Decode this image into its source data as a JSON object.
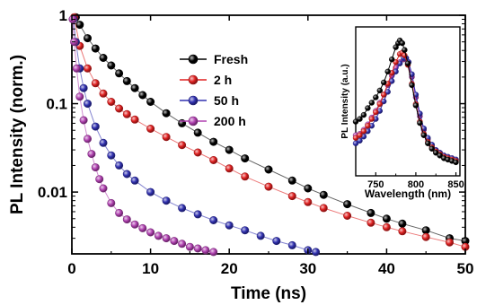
{
  "chart_data": [
    {
      "type": "scatter",
      "xlabel": "Time (ns)",
      "ylabel": "PL Intensity (norm.)",
      "xlim": [
        0,
        50
      ],
      "ylim": [
        0.002,
        1
      ],
      "yscale": "log",
      "xticks": [
        0,
        10,
        20,
        30,
        40,
        50
      ],
      "yticks": [
        {
          "value": 1,
          "label": "1"
        },
        {
          "value": 0.1,
          "label": "0.1"
        },
        {
          "value": 0.01,
          "label": "0.01"
        }
      ],
      "grid": false,
      "legend_position": "top-center",
      "series": [
        {
          "name": "Fresh",
          "color": "#000000",
          "x": [
            0.5,
            1,
            2,
            3,
            4,
            5,
            6,
            7,
            8,
            9,
            10,
            12,
            14,
            16,
            18,
            20,
            22,
            25,
            28,
            30,
            32,
            35,
            38,
            40,
            42,
            45,
            48,
            50
          ],
          "y": [
            0.95,
            0.78,
            0.55,
            0.42,
            0.33,
            0.27,
            0.22,
            0.18,
            0.15,
            0.125,
            0.105,
            0.078,
            0.06,
            0.047,
            0.037,
            0.03,
            0.024,
            0.018,
            0.0135,
            0.011,
            0.0093,
            0.0073,
            0.0058,
            0.005,
            0.0044,
            0.0037,
            0.003,
            0.0028
          ]
        },
        {
          "name": "2 h",
          "color": "#e02020",
          "x": [
            0.3,
            1,
            2,
            3,
            4,
            5,
            6,
            7,
            8,
            10,
            12,
            14,
            16,
            18,
            20,
            22,
            25,
            28,
            30,
            32,
            35,
            38,
            40,
            42,
            45,
            48,
            50
          ],
          "y": [
            0.95,
            0.45,
            0.25,
            0.17,
            0.13,
            0.105,
            0.088,
            0.076,
            0.066,
            0.052,
            0.042,
            0.034,
            0.028,
            0.023,
            0.0185,
            0.015,
            0.0115,
            0.009,
            0.0077,
            0.0066,
            0.0054,
            0.0045,
            0.004,
            0.0036,
            0.0031,
            0.0027,
            0.0024
          ]
        },
        {
          "name": "50 h",
          "color": "#3030b0",
          "x": [
            0.2,
            0.5,
            1,
            1.5,
            2,
            3,
            4,
            5,
            6,
            7,
            8,
            10,
            12,
            14,
            16,
            18,
            20,
            22,
            24,
            26,
            28,
            30,
            31
          ],
          "y": [
            0.9,
            0.5,
            0.25,
            0.15,
            0.1,
            0.055,
            0.036,
            0.026,
            0.02,
            0.016,
            0.0135,
            0.01,
            0.008,
            0.0066,
            0.0056,
            0.0048,
            0.0042,
            0.0037,
            0.0032,
            0.0028,
            0.0025,
            0.0022,
            0.0021
          ]
        },
        {
          "name": "200 h",
          "color": "#b040b0",
          "x": [
            0.1,
            0.3,
            0.6,
            1,
            1.5,
            2,
            2.5,
            3,
            3.5,
            4,
            5,
            6,
            7,
            8,
            9,
            10,
            11,
            12,
            13,
            14,
            15,
            16,
            17,
            18
          ],
          "y": [
            0.9,
            0.5,
            0.25,
            0.12,
            0.065,
            0.04,
            0.027,
            0.019,
            0.014,
            0.011,
            0.0075,
            0.0058,
            0.0049,
            0.0043,
            0.0039,
            0.0035,
            0.0032,
            0.003,
            0.0028,
            0.0026,
            0.0024,
            0.0023,
            0.0022,
            0.0021
          ]
        }
      ]
    },
    {
      "type": "scatter",
      "role": "inset",
      "xlabel": "Wavelength (nm)",
      "ylabel": "PL Intensity (a.u.)",
      "xlim": [
        725,
        855
      ],
      "ylim": [
        0,
        1.1
      ],
      "xticks": [
        750,
        800,
        850
      ],
      "grid": false,
      "series": [
        {
          "name": "Fresh",
          "color": "#000000",
          "x": [
            725,
            730,
            735,
            740,
            745,
            750,
            755,
            760,
            765,
            770,
            775,
            778,
            780,
            783,
            786,
            790,
            795,
            800,
            805,
            810,
            815,
            820,
            825,
            830,
            835,
            840,
            845,
            850
          ],
          "y": [
            0.4,
            0.42,
            0.45,
            0.5,
            0.54,
            0.58,
            0.63,
            0.69,
            0.77,
            0.86,
            0.95,
            0.98,
            1.0,
            0.98,
            0.93,
            0.83,
            0.67,
            0.52,
            0.39,
            0.3,
            0.24,
            0.2,
            0.17,
            0.15,
            0.13,
            0.12,
            0.11,
            0.1
          ]
        },
        {
          "name": "2 h",
          "color": "#e02020",
          "x": [
            725,
            730,
            735,
            740,
            745,
            750,
            755,
            760,
            765,
            770,
            775,
            780,
            783,
            786,
            790,
            795,
            800,
            805,
            810,
            815,
            820,
            825,
            830,
            835,
            840,
            845,
            850
          ],
          "y": [
            0.28,
            0.3,
            0.33,
            0.37,
            0.42,
            0.47,
            0.53,
            0.6,
            0.68,
            0.76,
            0.84,
            0.9,
            0.91,
            0.89,
            0.82,
            0.68,
            0.53,
            0.4,
            0.31,
            0.25,
            0.21,
            0.18,
            0.16,
            0.14,
            0.13,
            0.12,
            0.11
          ]
        },
        {
          "name": "50 h",
          "color": "#3030b0",
          "x": [
            725,
            730,
            735,
            740,
            745,
            750,
            755,
            760,
            765,
            770,
            775,
            780,
            785,
            788,
            791,
            795,
            800,
            805,
            810,
            815,
            820,
            825,
            830,
            835,
            840,
            845,
            850
          ],
          "y": [
            0.24,
            0.26,
            0.29,
            0.33,
            0.37,
            0.42,
            0.48,
            0.55,
            0.62,
            0.7,
            0.77,
            0.83,
            0.87,
            0.87,
            0.84,
            0.75,
            0.6,
            0.46,
            0.35,
            0.28,
            0.23,
            0.19,
            0.17,
            0.15,
            0.14,
            0.13,
            0.12
          ]
        },
        {
          "name": "200 h",
          "color": "#b040b0",
          "x": [
            725,
            730,
            735,
            740,
            745,
            750,
            755,
            760,
            765,
            770,
            775,
            780,
            785,
            790,
            795,
            800,
            805,
            810,
            815,
            820,
            825,
            830,
            835,
            840,
            845,
            850
          ],
          "y": [
            0.3,
            0.31,
            0.34,
            0.38,
            0.43,
            0.48,
            0.54,
            0.6,
            0.67,
            0.74,
            0.8,
            0.84,
            0.86,
            0.83,
            0.73,
            0.58,
            0.44,
            0.34,
            0.27,
            0.22,
            0.19,
            0.17,
            0.15,
            0.14,
            0.13,
            0.12
          ]
        }
      ]
    }
  ]
}
